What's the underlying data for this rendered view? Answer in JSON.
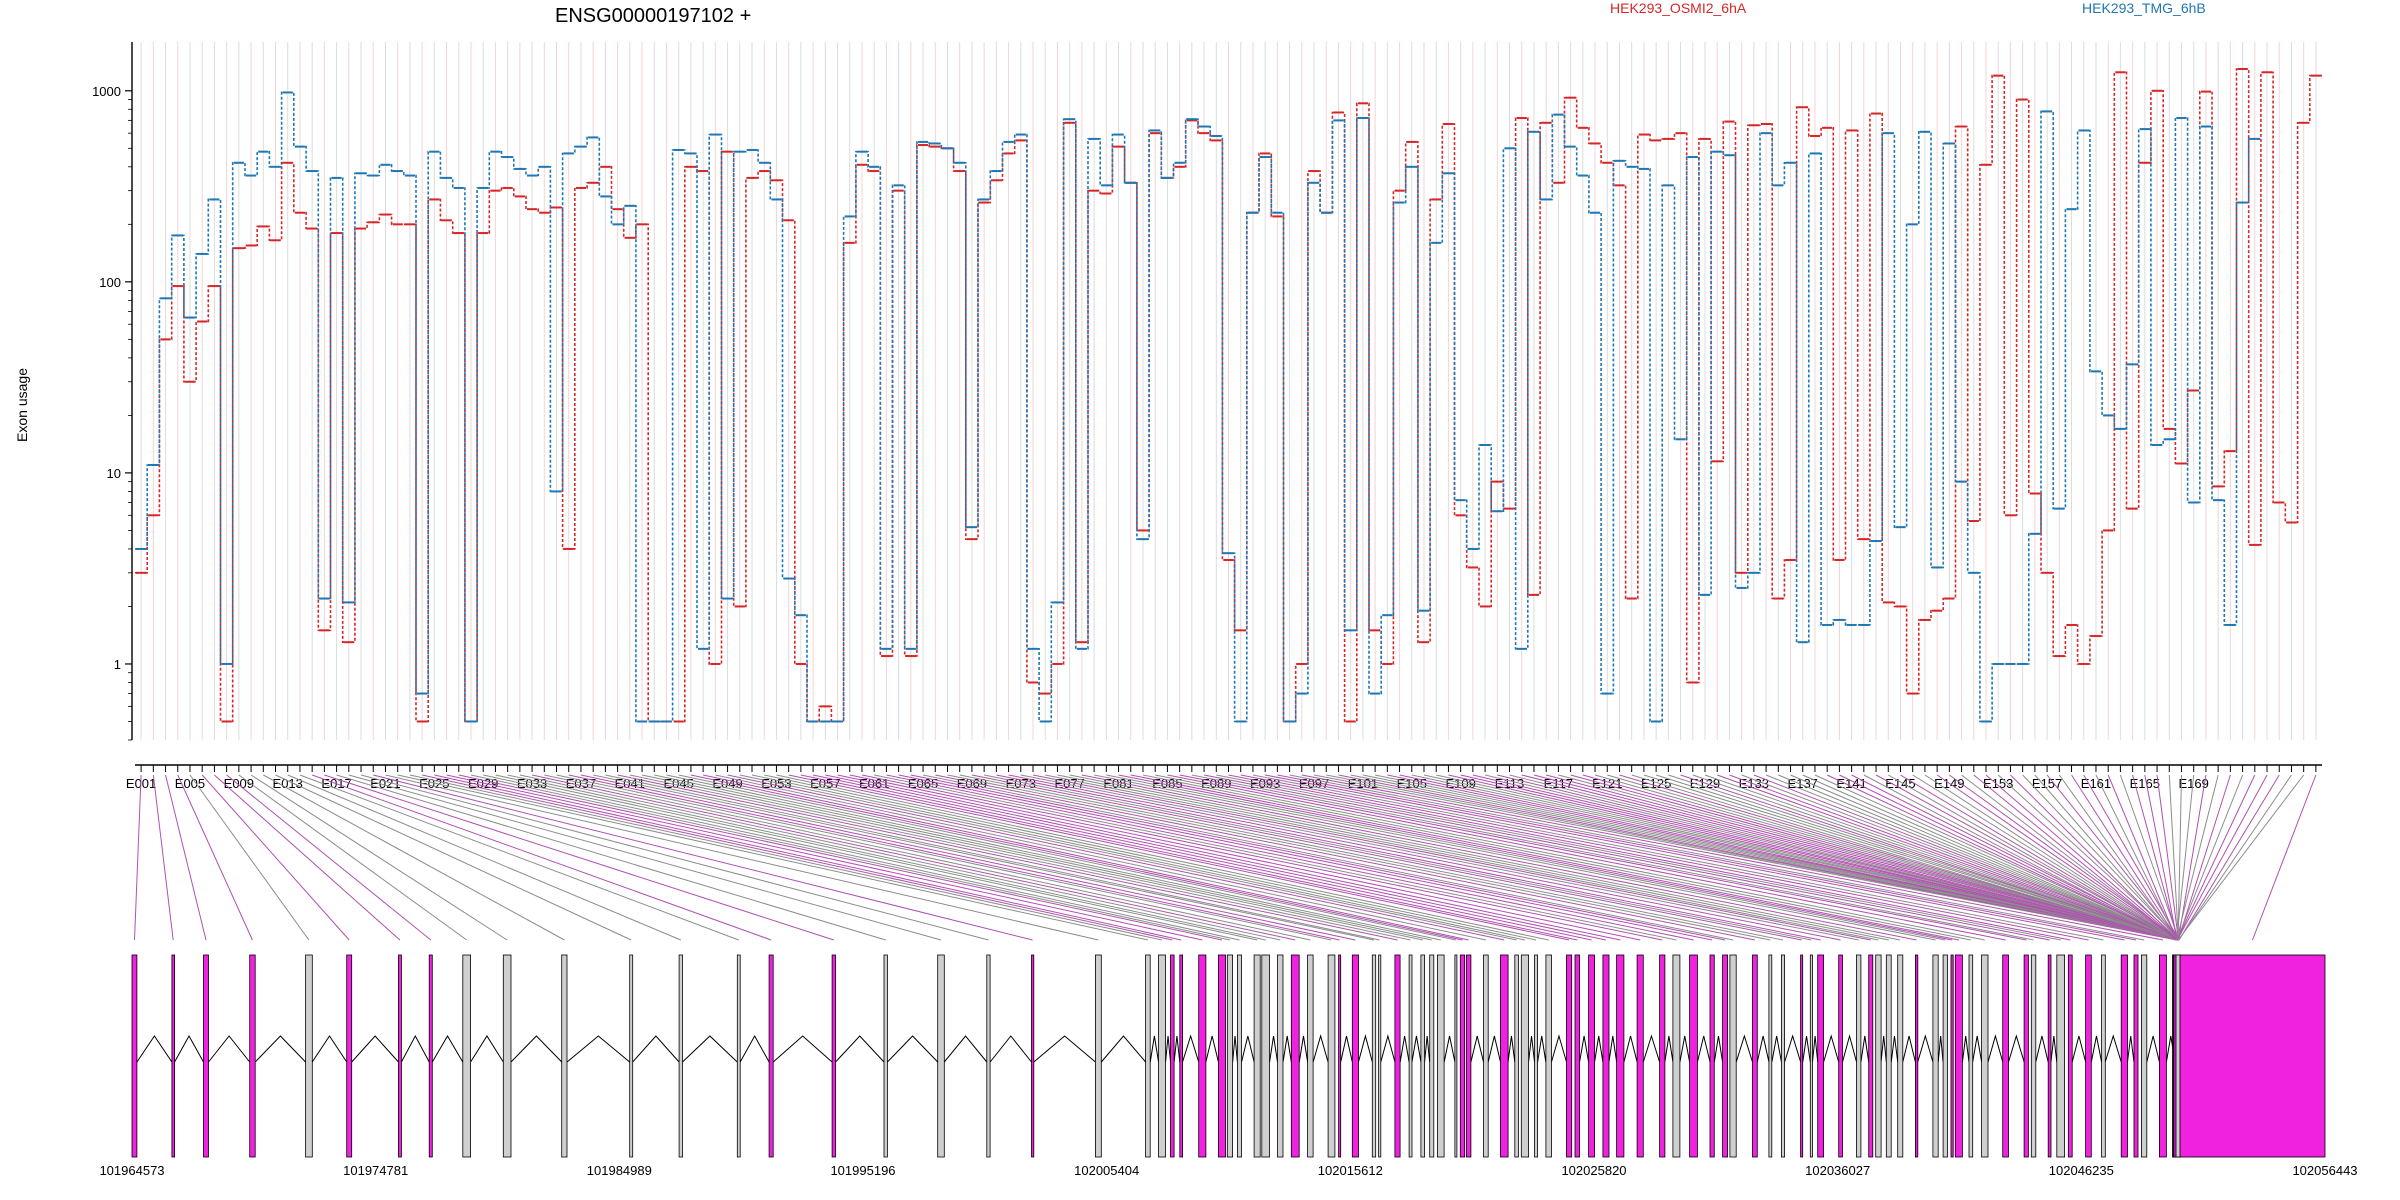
{
  "chart_data": {
    "type": "line",
    "title": "ENSG00000197102 +",
    "ylabel": "Exon usage",
    "xlabel": "",
    "yscale": "log",
    "ylim": [
      0.4,
      1800
    ],
    "yticks": [
      1,
      10,
      100,
      1000
    ],
    "ytick_labels": [
      "1",
      "10",
      "100",
      "1000"
    ],
    "grid": "vertical lines (light)",
    "legend_position": "top",
    "x_tick_labels": [
      "E001",
      "E005",
      "E009",
      "E013",
      "E017",
      "E021",
      "E025",
      "E029",
      "E033",
      "E037",
      "E041",
      "E045",
      "E049",
      "E053",
      "E057",
      "E061",
      "E065",
      "E069",
      "E073",
      "E077",
      "E081",
      "E085",
      "E089",
      "E093",
      "E097",
      "E101",
      "E105",
      "E109",
      "E113",
      "E117",
      "E121",
      "E125",
      "E129",
      "E133",
      "E137",
      "E141",
      "E145",
      "E149",
      "E153",
      "E157",
      "E161",
      "E165",
      "E169"
    ],
    "series": [
      {
        "name": "HEK293_OSMI2_6hA",
        "color": "#d62728",
        "values": [
          3,
          6,
          50,
          95,
          30,
          62,
          95,
          0.5,
          150,
          155,
          195,
          165,
          420,
          230,
          190,
          1.5,
          180,
          1.3,
          190,
          205,
          225,
          200,
          200,
          0.5,
          270,
          210,
          180,
          0.5,
          180,
          300,
          310,
          280,
          240,
          230,
          245,
          4,
          310,
          330,
          400,
          240,
          170,
          200,
          0.5,
          0.5,
          0.5,
          400,
          380,
          1,
          480,
          2,
          350,
          380,
          340,
          210,
          1,
          0.5,
          0.6,
          0.5,
          160,
          410,
          380,
          1.1,
          300,
          1.1,
          520,
          510,
          500,
          380,
          4.5,
          260,
          340,
          470,
          550,
          0.8,
          0.7,
          1,
          680,
          1.3,
          300,
          290,
          510,
          330,
          5,
          600,
          350,
          400,
          700,
          600,
          550,
          3.5,
          1.5,
          230,
          470,
          220,
          0.5,
          1,
          380,
          230,
          770,
          0.5,
          860,
          1.5,
          1,
          300,
          540,
          1.3,
          270,
          670,
          6,
          3.2,
          2,
          9,
          6.5,
          720,
          2.3,
          680,
          330,
          920,
          640,
          530,
          420,
          320,
          2.2,
          590,
          550,
          560,
          600,
          0.8,
          560,
          11.5,
          690,
          3,
          660,
          670,
          2.2,
          3.5,
          820,
          580,
          640,
          3.5,
          620,
          4.5,
          760,
          2.1,
          2,
          0.7,
          1.7,
          1.9,
          2.2,
          650,
          5.6,
          410,
          1200,
          6,
          900,
          7.8,
          3,
          1.1,
          1.6,
          1,
          1.4,
          5,
          1250,
          6.5,
          420,
          1000,
          17,
          11.2,
          27,
          990,
          8.5,
          13,
          1300,
          4.2,
          1250,
          7,
          5.5,
          680,
          1200
        ]
      },
      {
        "name": "HEK293_TMG_6hB",
        "color": "#1f77b4",
        "values": [
          4,
          11,
          82,
          175,
          65,
          140,
          270,
          1,
          420,
          360,
          480,
          400,
          980,
          510,
          380,
          2.2,
          350,
          2.1,
          370,
          360,
          410,
          380,
          360,
          0.7,
          480,
          350,
          310,
          0.5,
          310,
          480,
          450,
          390,
          360,
          400,
          8,
          470,
          510,
          570,
          280,
          200,
          250,
          0.5,
          0.5,
          0.5,
          490,
          470,
          1.2,
          590,
          2.2,
          480,
          490,
          420,
          270,
          2.8,
          1.8,
          0.5,
          0.5,
          0.5,
          220,
          480,
          400,
          1.2,
          320,
          1.2,
          540,
          530,
          500,
          420,
          5.2,
          270,
          380,
          540,
          590,
          1.2,
          0.5,
          2.1,
          710,
          1.2,
          560,
          320,
          590,
          330,
          4.5,
          620,
          350,
          420,
          710,
          650,
          580,
          3.8,
          0.5,
          230,
          450,
          230,
          0.5,
          0.7,
          330,
          230,
          700,
          1.5,
          720,
          0.7,
          1.8,
          260,
          400,
          1.9,
          160,
          370,
          7.2,
          4,
          14,
          6.3,
          500,
          1.2,
          610,
          270,
          750,
          510,
          360,
          230,
          0.7,
          430,
          400,
          390,
          0.5,
          320,
          15,
          450,
          2.3,
          480,
          460,
          2.5,
          3,
          600,
          320,
          420,
          1.3,
          470,
          1.6,
          1.7,
          1.6,
          1.6,
          4.4,
          600,
          5.2,
          200,
          610,
          3.2,
          530,
          9,
          3,
          0.5,
          1,
          1,
          1,
          4.8,
          780,
          6.5,
          240,
          620,
          34,
          20,
          17,
          37,
          630,
          14,
          15,
          720,
          7,
          650,
          7.2,
          1.6,
          260,
          560
        ]
      }
    ]
  },
  "gene_model": {
    "genomic_labels": [
      "101964573",
      "101974781",
      "101984989",
      "101995196",
      "102005404",
      "102015612",
      "102025820",
      "102036027",
      "102046235",
      "102056443"
    ]
  }
}
